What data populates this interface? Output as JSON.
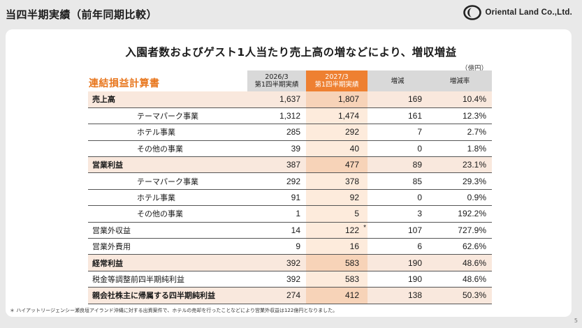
{
  "header": {
    "title": "当四半期実績（前年同期比較）",
    "logo_text": "Oriental Land Co.,Ltd."
  },
  "headline": "入園者数およびゲスト1人当たり売上高の増などにより、増収増益",
  "unit": "（億円）",
  "table": {
    "title": "連結損益計算書",
    "columns": {
      "prev_line1": "2026/3",
      "prev_line2": "第1四半期実績",
      "cur_line1": "2027/3",
      "cur_line2": "第1四半期実績",
      "diff": "増減",
      "rate": "増減率"
    },
    "rows": [
      {
        "label": "売上高",
        "prev": "1,637",
        "cur": "1,807",
        "diff": "169",
        "rate": "10.4%"
      },
      {
        "label": "テーマパーク事業",
        "prev": "1,312",
        "cur": "1,474",
        "diff": "161",
        "rate": "12.3%"
      },
      {
        "label": "ホテル事業",
        "prev": "285",
        "cur": "292",
        "diff": "7",
        "rate": "2.7%"
      },
      {
        "label": "その他の事業",
        "prev": "39",
        "cur": "40",
        "diff": "0",
        "rate": "1.8%"
      },
      {
        "label": "営業利益",
        "prev": "387",
        "cur": "477",
        "diff": "89",
        "rate": "23.1%"
      },
      {
        "label": "テーマパーク事業",
        "prev": "292",
        "cur": "378",
        "diff": "85",
        "rate": "29.3%"
      },
      {
        "label": "ホテル事業",
        "prev": "91",
        "cur": "92",
        "diff": "0",
        "rate": "0.9%"
      },
      {
        "label": "その他の事業",
        "prev": "1",
        "cur": "5",
        "diff": "3",
        "rate": "192.2%"
      },
      {
        "label": "営業外収益",
        "prev": "14",
        "cur": "122",
        "cur_note": "*",
        "diff": "107",
        "rate": "727.9%"
      },
      {
        "label": "営業外費用",
        "prev": "9",
        "cur": "16",
        "diff": "6",
        "rate": "62.6%"
      },
      {
        "label": "経常利益",
        "prev": "392",
        "cur": "583",
        "diff": "190",
        "rate": "48.6%"
      },
      {
        "label": "税金等調整前四半期純利益",
        "prev": "392",
        "cur": "583",
        "diff": "190",
        "rate": "48.6%"
      },
      {
        "label": "親会社株主に帰属する四半期純利益",
        "prev": "274",
        "cur": "412",
        "diff": "138",
        "rate": "50.3%"
      }
    ]
  },
  "footnote": "＊ ハイアットリージェンシー瀬良垣アイランド沖縄に対する出資案件で、ホテルの売却を行ったことなどにより営業外収益は122億円となりました。",
  "page_number": "5",
  "colors": {
    "accent": "#ee8031",
    "highlight_row": "#f9e8dd",
    "current_column": "#fdebdc"
  }
}
